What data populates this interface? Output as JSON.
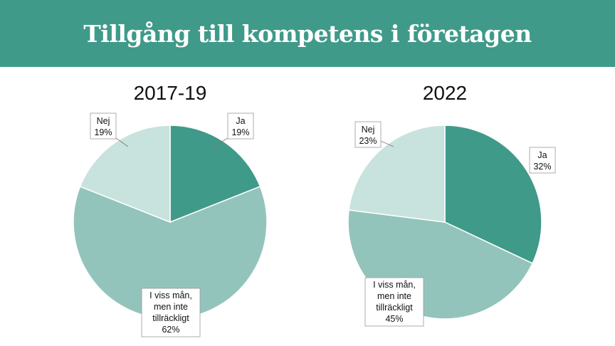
{
  "title": "Tillgång till kompetens i företagen",
  "colors": {
    "header": "#3f9a89",
    "ja": "#3f9a89",
    "viss": "#93c4bb",
    "nej": "#c8e2dd"
  },
  "chart_data": [
    {
      "type": "pie",
      "title": "2017-19",
      "slices": [
        {
          "label": "Ja",
          "value": 19,
          "value_label": "19%"
        },
        {
          "label": "I viss mån, men inte tillräckligt",
          "value": 62,
          "value_label": "62%"
        },
        {
          "label": "Nej",
          "value": 19,
          "value_label": "19%"
        }
      ]
    },
    {
      "type": "pie",
      "title": "2022",
      "slices": [
        {
          "label": "Ja",
          "value": 32,
          "value_label": "32%"
        },
        {
          "label": "I viss mån, men inte tillräckligt",
          "value": 45,
          "value_label": "45%"
        },
        {
          "label": "Nej",
          "value": 23,
          "value_label": "23%"
        }
      ]
    }
  ]
}
